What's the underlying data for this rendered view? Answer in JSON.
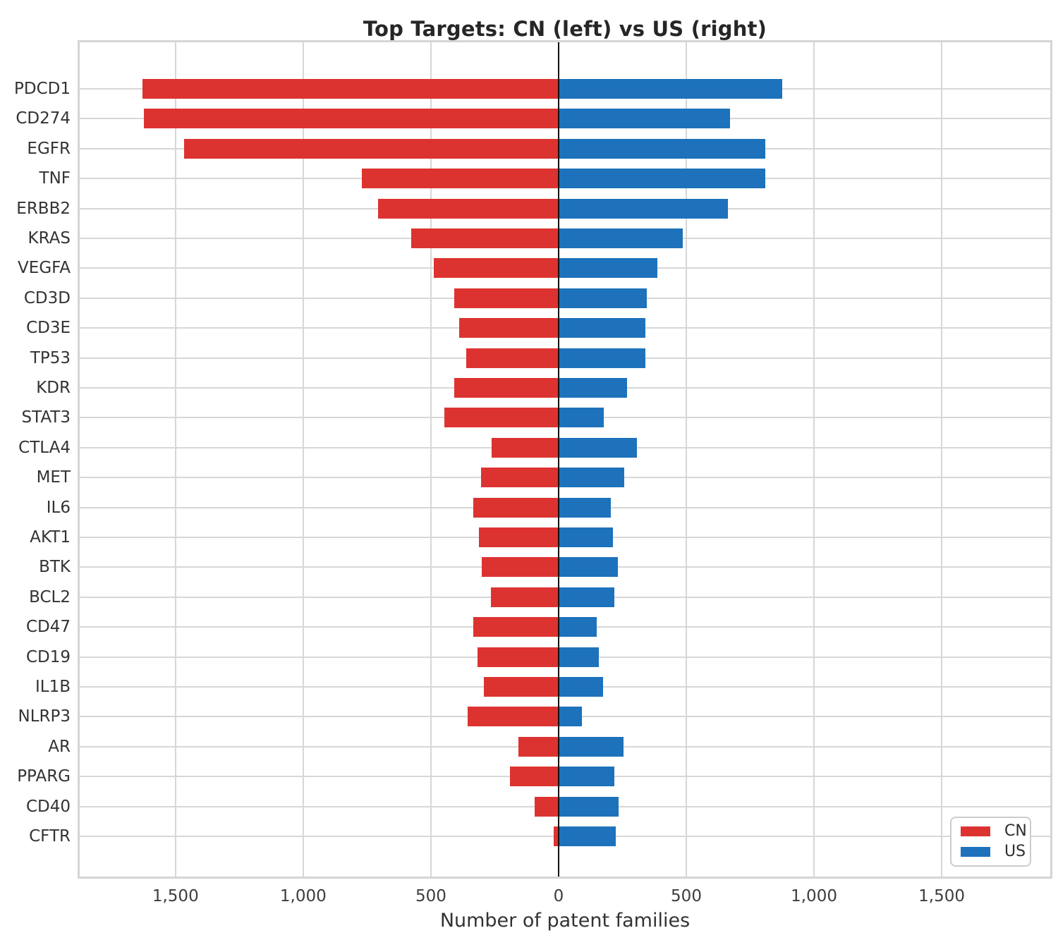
{
  "title": "Top Targets: CN (left) vs US (right)",
  "chart_data": {
    "type": "bar",
    "orientation": "horizontal-diverging",
    "categories": [
      "PDCD1",
      "CD274",
      "EGFR",
      "TNF",
      "ERBB2",
      "KRAS",
      "VEGFA",
      "CD3D",
      "CD3E",
      "TP53",
      "KDR",
      "STAT3",
      "CTLA4",
      "MET",
      "IL6",
      "AKT1",
      "BTK",
      "BCL2",
      "CD47",
      "CD19",
      "IL1B",
      "NLRP3",
      "AR",
      "PPARG",
      "CD40",
      "CFTR"
    ],
    "series": [
      {
        "name": "CN",
        "side": "left",
        "color": "#dd3330",
        "values": [
          1629,
          1624,
          1466,
          771,
          707,
          577,
          489,
          409,
          390,
          362,
          409,
          446,
          262,
          303,
          333,
          313,
          301,
          266,
          335,
          318,
          293,
          357,
          158,
          190,
          94,
          18
        ]
      },
      {
        "name": "US",
        "side": "right",
        "color": "#1d72bb",
        "values": [
          876,
          672,
          810,
          810,
          663,
          485,
          386,
          346,
          340,
          339,
          268,
          176,
          308,
          256,
          204,
          214,
          231,
          217,
          148,
          158,
          175,
          91,
          254,
          219,
          234,
          224
        ]
      }
    ],
    "title": "Top Targets: CN (left) vs US (right)",
    "xlabel": "Number of patent families",
    "ylabel": "",
    "xlim": [
      -1875,
      1925
    ],
    "x_ticks": [
      -1500,
      -1000,
      -500,
      0,
      500,
      1000,
      1500
    ],
    "x_tick_labels": [
      "1,500",
      "1,000",
      "500",
      "0",
      "500",
      "1,000",
      "1,500"
    ],
    "grid": true,
    "zero_line_color": "#111111",
    "grid_color": "#d7d7d7",
    "legend": {
      "position": "lower right",
      "entries": [
        "CN",
        "US"
      ]
    }
  }
}
